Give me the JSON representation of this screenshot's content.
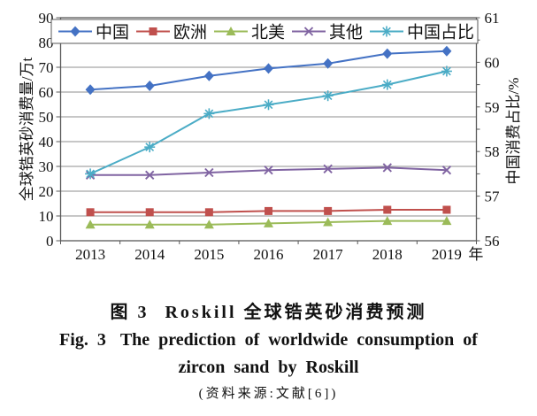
{
  "caption": {
    "zh_label": "图 3",
    "zh_title": "Roskill 全球锆英砂消费预测",
    "en_label": "Fig. 3",
    "en_title_line1": "The prediction of worldwide consumption of",
    "en_title_line2": "zircon sand by Roskill",
    "source": "(资料来源:文献[6])"
  },
  "chart_data": {
    "type": "line",
    "categories": [
      "2013",
      "2014",
      "2015",
      "2016",
      "2017",
      "2018",
      "2019"
    ],
    "x_suffix": "年",
    "series": [
      {
        "name": "中国",
        "axis": "left",
        "color": "#4472C4",
        "marker": "diamond",
        "values": [
          61,
          62.5,
          66.5,
          69.5,
          71.5,
          75.5,
          76.5
        ]
      },
      {
        "name": "欧洲",
        "axis": "left",
        "color": "#C0504D",
        "marker": "square",
        "values": [
          11.5,
          11.5,
          11.5,
          12,
          12,
          12.5,
          12.5
        ]
      },
      {
        "name": "北美",
        "axis": "left",
        "color": "#9BBB59",
        "marker": "triangle",
        "values": [
          6.5,
          6.5,
          6.5,
          7,
          7.5,
          8,
          8
        ]
      },
      {
        "name": "其他",
        "axis": "left",
        "color": "#8064A2",
        "marker": "x",
        "values": [
          26.5,
          26.5,
          27.5,
          28.5,
          29,
          29.5,
          28.5
        ]
      },
      {
        "name": "中国占比",
        "axis": "right",
        "color": "#4BACC6",
        "marker": "asterisk",
        "values": [
          57.5,
          58.1,
          58.85,
          59.05,
          59.25,
          59.5,
          59.8
        ]
      }
    ],
    "left_axis": {
      "label": "全球锆英砂消费量/万t",
      "min": 0,
      "max": 90,
      "step": 10
    },
    "right_axis": {
      "label": "中国消费占比/%",
      "min": 56,
      "max": 61,
      "step": 1,
      "minor_step": 0.5
    },
    "legend_position": "top-inside",
    "grid": true,
    "colors": {
      "gridline": "#8f8f8f",
      "axis_border": "#595959",
      "background": "#ffffff"
    }
  }
}
